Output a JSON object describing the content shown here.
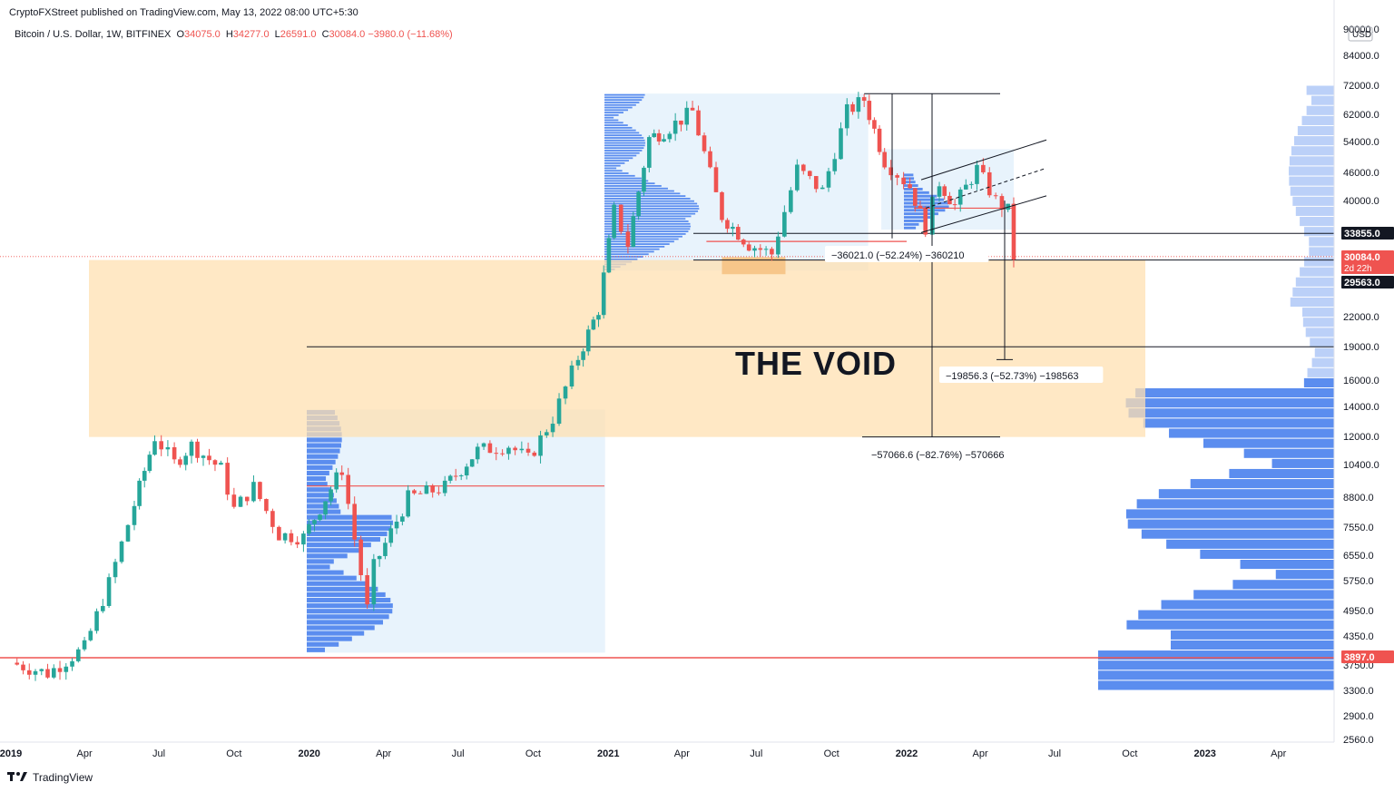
{
  "header": {
    "publisher": "CryptoFXStreet published on TradingView.com, May 13, 2022 08:00 UTC+5:30"
  },
  "legend": {
    "symbol": "Bitcoin / U.S. Dollar, 1W, BITFINEX",
    "open_label": "O",
    "open": "34075.0",
    "high_label": "H",
    "high": "34277.0",
    "low_label": "L",
    "low": "26591.0",
    "close_label": "C",
    "close": "30084.0",
    "change": "−3980.0 (−11.68%)"
  },
  "footer": {
    "brand": "TradingView"
  },
  "annotation": {
    "void_text": "THE VOID"
  },
  "colors": {
    "up": "#26a69a",
    "down": "#ef5350",
    "zone": "#ffe0b2",
    "vp": "#5b8def",
    "vp_light": "#bbd0f8",
    "bg_zone": "#e8f3fc"
  },
  "chart_data": {
    "type": "candlestick",
    "title": "Bitcoin / U.S. Dollar, 1W, BITFINEX",
    "y_scale": "log",
    "currency": "USD",
    "y_tick_labels": [
      "90000.0",
      "84000.0",
      "72000.0",
      "62000.0",
      "54000.0",
      "46000.0",
      "40000.0",
      "33855.0",
      "30084.0",
      "29563.0",
      "22000.0",
      "19000.0",
      "16000.0",
      "14000.0",
      "12000.0",
      "10400.0",
      "8800.0",
      "7550.0",
      "6550.0",
      "5750.0",
      "4950.0",
      "4350.0",
      "3897.0",
      "3750.0",
      "3300.0",
      "2900.0",
      "2560.0"
    ],
    "x_tick_labels": [
      "2019",
      "Apr",
      "Jul",
      "Oct",
      "2020",
      "Apr",
      "Jul",
      "Oct",
      "2021",
      "Apr",
      "Jul",
      "Oct",
      "2022",
      "Apr",
      "Jul",
      "Oct",
      "2023",
      "Apr"
    ],
    "price_badges": [
      {
        "value": "33855.0",
        "style": "dark"
      },
      {
        "value": "30084.0",
        "sub": "2d 22h",
        "style": "red"
      },
      {
        "value": "29563.0",
        "style": "dark"
      },
      {
        "value": "3897.0",
        "style": "red"
      }
    ],
    "measurements": [
      {
        "text": "−36021.0 (−52.24%) −360210"
      },
      {
        "text": "−19856.3 (−52.73%) −198563"
      },
      {
        "text": "−57066.6 (−82.76%) −570666"
      }
    ],
    "key_levels": [
      69000,
      33855,
      29563,
      19000,
      12000,
      3897
    ],
    "price_path": [
      [
        "2019-01-01",
        3800
      ],
      [
        "2019-02-15",
        3600
      ],
      [
        "2019-04-01",
        4100
      ],
      [
        "2019-05-01",
        5700
      ],
      [
        "2019-06-01",
        8500
      ],
      [
        "2019-06-26",
        12000
      ],
      [
        "2019-07-20",
        10500
      ],
      [
        "2019-08-10",
        11500
      ],
      [
        "2019-09-15",
        10200
      ],
      [
        "2019-10-01",
        8300
      ],
      [
        "2019-10-25",
        9300
      ],
      [
        "2019-11-25",
        7300
      ],
      [
        "2019-12-25",
        7200
      ],
      [
        "2020-02-10",
        10200
      ],
      [
        "2020-03-12",
        5000
      ],
      [
        "2020-03-20",
        6200
      ],
      [
        "2020-05-01",
        8800
      ],
      [
        "2020-06-15",
        9300
      ],
      [
        "2020-07-25",
        11200
      ],
      [
        "2020-09-01",
        11500
      ],
      [
        "2020-09-25",
        10700
      ],
      [
        "2020-10-25",
        13200
      ],
      [
        "2020-11-25",
        18000
      ],
      [
        "2020-12-20",
        23000
      ],
      [
        "2021-01-08",
        38000
      ],
      [
        "2021-01-25",
        32000
      ],
      [
        "2021-02-20",
        55000
      ],
      [
        "2021-03-10",
        57000
      ],
      [
        "2021-04-14",
        63000
      ],
      [
        "2021-05-20",
        37000
      ],
      [
        "2021-06-22",
        32000
      ],
      [
        "2021-07-20",
        30500
      ],
      [
        "2021-08-20",
        47000
      ],
      [
        "2021-09-20",
        42000
      ],
      [
        "2021-10-20",
        63000
      ],
      [
        "2021-11-10",
        67000
      ],
      [
        "2021-12-05",
        49000
      ],
      [
        "2022-01-05",
        43000
      ],
      [
        "2022-01-24",
        35000
      ],
      [
        "2022-02-10",
        44000
      ],
      [
        "2022-03-01",
        39000
      ],
      [
        "2022-03-28",
        47000
      ],
      [
        "2022-04-20",
        40000
      ],
      [
        "2022-05-05",
        38000
      ],
      [
        "2022-05-12",
        30084
      ]
    ]
  }
}
